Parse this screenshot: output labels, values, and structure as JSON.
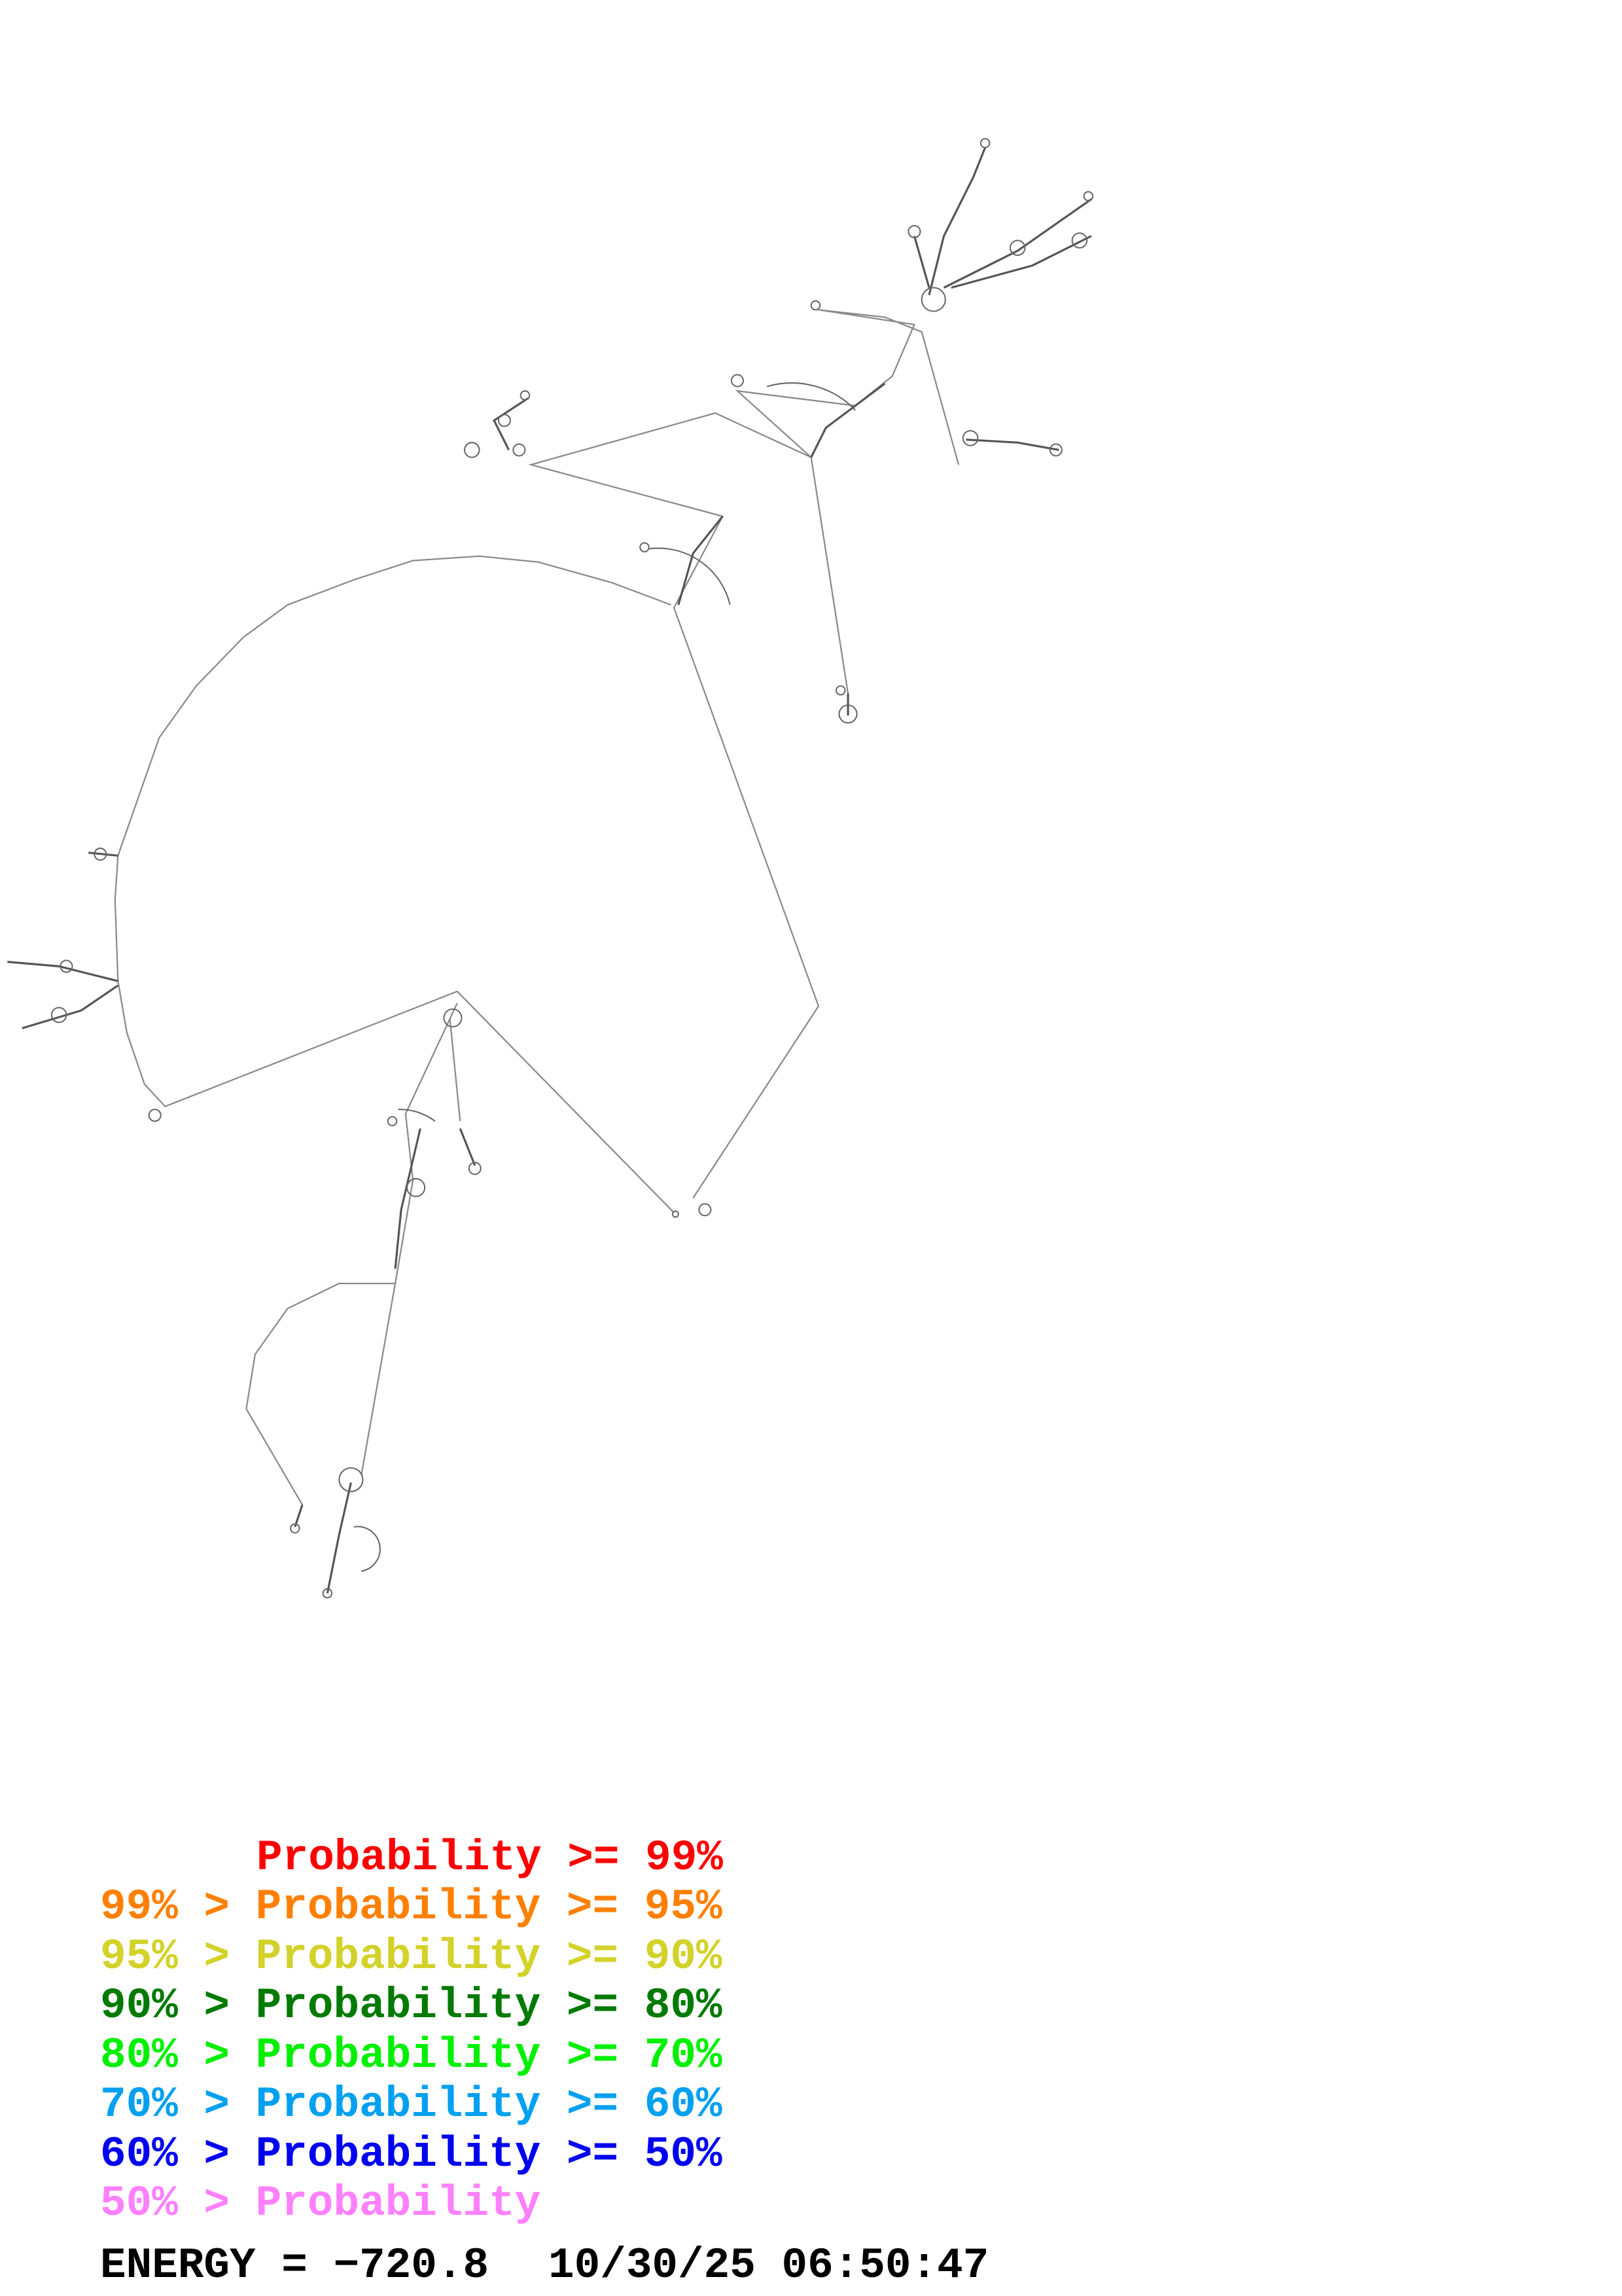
{
  "legend": {
    "rows": [
      {
        "text": "Probability >= 99%",
        "color": "#ff0000"
      },
      {
        "text": "99% > Probability >= 95%",
        "color": "#ff8000"
      },
      {
        "text": "95% > Probability >= 90%",
        "color": "#d2d22a"
      },
      {
        "text": "90% > Probability >= 80%",
        "color": "#007a00"
      },
      {
        "text": "80% > Probability >= 70%",
        "color": "#00f000"
      },
      {
        "text": "70% > Probability >= 60%",
        "color": "#00a0f0"
      },
      {
        "text": "60% > Probability >= 50%",
        "color": "#0000f0"
      },
      {
        "text": "50% > Probability",
        "color": "#ff80ff"
      }
    ]
  },
  "footer": {
    "energy": "ENERGY = −720.8",
    "timestamp": "10/30/25 06:50:47"
  }
}
